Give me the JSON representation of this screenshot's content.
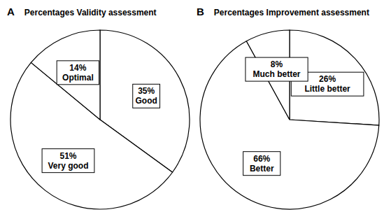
{
  "chart_data": [
    {
      "type": "pie",
      "panel": "A",
      "title": "Percentages Validity assessment",
      "categories": [
        "Good",
        "Very good",
        "Optimal"
      ],
      "values": [
        35,
        51,
        14
      ],
      "value_labels": [
        "35%",
        "51%",
        "14%"
      ],
      "color": "#ffffff",
      "data_labels": true
    },
    {
      "type": "pie",
      "panel": "B",
      "title": "Percentages Improvement assessment",
      "categories": [
        "Little better",
        "Better",
        "Much better"
      ],
      "values": [
        26,
        66,
        8
      ],
      "value_labels": [
        "26%",
        "66%",
        "8%"
      ],
      "color": "#ffffff",
      "data_labels": true
    }
  ]
}
